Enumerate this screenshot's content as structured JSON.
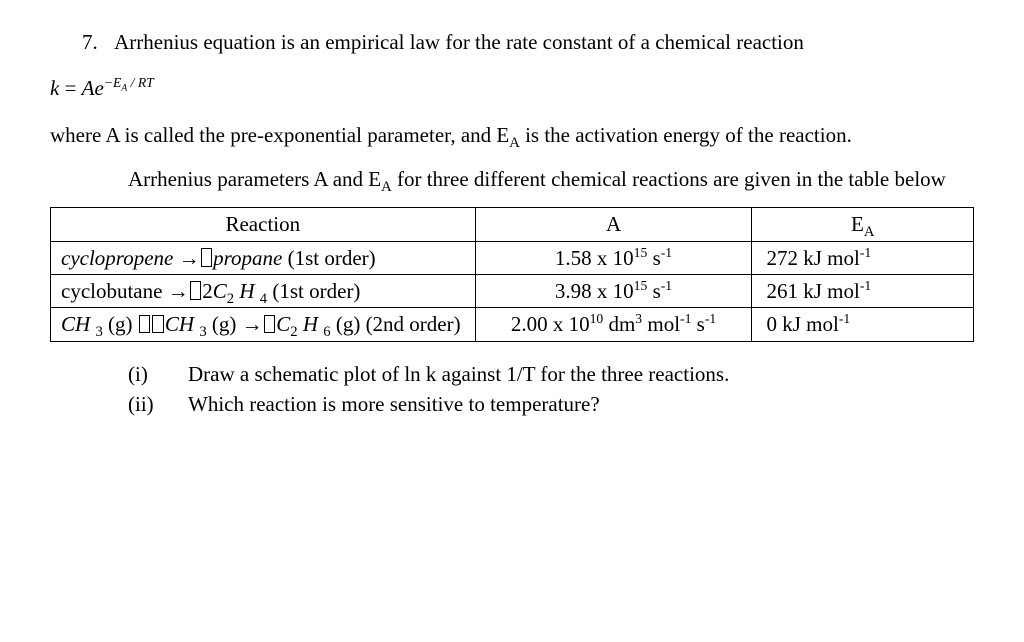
{
  "question": {
    "number": "7.",
    "intro": "Arrhenius equation is an empirical law for the rate constant of a chemical reaction",
    "equation_lhs": "k",
    "equation_A": "A",
    "equation_e": "e",
    "equation_exp_prefix": "−E",
    "equation_exp_sub": "A",
    "equation_exp_suffix": " / RT",
    "definition": "where A is called the pre-exponential parameter, and E",
    "definition_sub": "A",
    "definition_cont": " is the activation energy of the reaction.",
    "table_intro_a": "Arrhenius parameters A and E",
    "table_intro_sub": "A",
    "table_intro_b": " for three different chemical reactions are given in the table below"
  },
  "table": {
    "headers": {
      "reaction": "Reaction",
      "A": "A",
      "EA_prefix": "E",
      "EA_sub": "A"
    },
    "rows": [
      {
        "reaction_html": "<span class='italic'>cyclopropene</span> →<span class='placeholder-box'></span><span class='italic'>propane</span> (1st order)",
        "A_html": "1.58 x 10<sup>15</sup> s<sup>-1</sup>",
        "EA_html": "272 kJ mol<sup>-1</sup>"
      },
      {
        "reaction_html": "cyclobutane →<span class='placeholder-box'></span>2<span class='italic'>C</span><sub>2</sub> <span class='italic'>H</span> <sub>4</sub> (1st order)",
        "A_html": "3.98 x 10<sup>15</sup> s<sup>-1</sup>",
        "EA_html": "261 kJ mol<sup>-1</sup>"
      },
      {
        "reaction_html": "<span class='italic'>CH</span> <sub>3</sub> (g) <span class='placeholder-box'></span><span class='placeholder-box'></span><span class='italic'>CH</span> <sub>3</sub> (g) →<span class='placeholder-box'></span><span class='italic'>C</span><sub>2</sub> <span class='italic'>H</span> <sub>6</sub> (g) (2nd order)",
        "A_html": "<span class='nowrap'>2.00 x 10<sup>10</sup> dm<sup>3</sup> mol<sup>-1</sup> s<sup>-1</sup></span>",
        "EA_html": "0 kJ mol<sup>-1</sup>"
      }
    ]
  },
  "subq": {
    "i_label": "(i)",
    "i_text": "Draw a schematic plot of ln k against 1/T for the three reactions.",
    "ii_label": "(ii)",
    "ii_text": "Which reaction is more sensitive to temperature?"
  }
}
